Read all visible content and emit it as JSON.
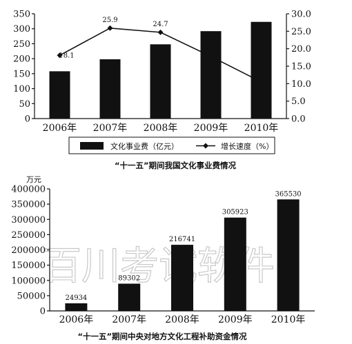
{
  "watermark": "百川考试软件",
  "chart_data": [
    {
      "type": "bar",
      "title": "“十一五”期间我国文化事业费情况",
      "categories": [
        "2006年",
        "2007年",
        "2008年",
        "2009年",
        "2010年"
      ],
      "ylim": [
        0,
        350
      ],
      "y2lim": [
        0,
        30
      ],
      "yticks": [
        "0",
        "50",
        "100",
        "150",
        "200",
        "250",
        "300",
        "350"
      ],
      "y2ticks": [
        "0.0",
        "5.0",
        "10.0",
        "15.0",
        "20.0",
        "25.0",
        "30.0"
      ],
      "series": [
        {
          "name": "文化事业费（亿元）",
          "type": "bar",
          "axis": "left",
          "values": [
            158,
            198,
            248,
            292,
            323
          ]
        },
        {
          "name": "增长速度（%）",
          "type": "line",
          "axis": "right",
          "values": [
            18.1,
            25.9,
            24.7,
            17.8,
            10.5
          ],
          "labels": [
            "18.1",
            "25.9",
            "24.7",
            "",
            ""
          ]
        }
      ],
      "legend": "bottom"
    },
    {
      "type": "bar",
      "title": "“十一五”期间中央对地方文化工程补助资金情况",
      "ylabel": "万元",
      "categories": [
        "2006年",
        "2007年",
        "2008年",
        "2009年",
        "2010年"
      ],
      "ylim": [
        0,
        400000
      ],
      "yticks": [
        "0",
        "50000",
        "100000",
        "150000",
        "200000",
        "250000",
        "300000",
        "350000",
        "400000"
      ],
      "series": [
        {
          "name": "",
          "values": [
            24934,
            89302,
            216741,
            305923,
            365530
          ],
          "labels": [
            "24934",
            "89302",
            "216741",
            "305923",
            "365530"
          ]
        }
      ]
    }
  ]
}
